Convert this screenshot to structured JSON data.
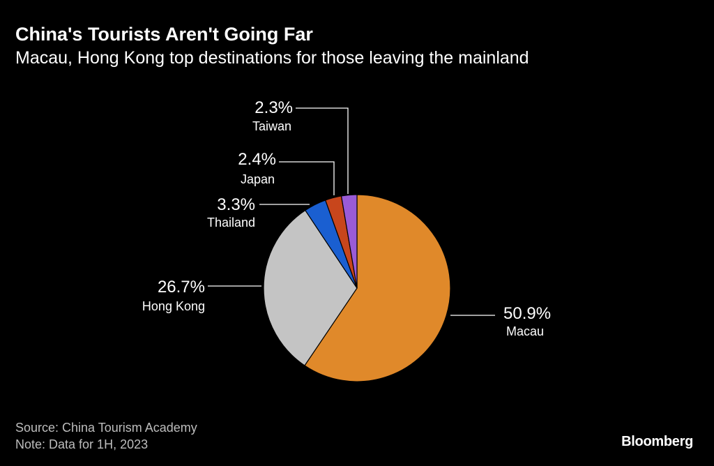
{
  "header": {
    "title": "China's Tourists Aren't Going Far",
    "subtitle": "Macau, Hong Kong top destinations for those leaving the mainland"
  },
  "chart_data": {
    "type": "pie",
    "start_angle_deg": 0,
    "direction": "clockwise",
    "slices": [
      {
        "label": "Macau",
        "value": 50.9,
        "value_label": "50.9%",
        "color": "#e0892a"
      },
      {
        "label": "Hong Kong",
        "value": 26.7,
        "value_label": "26.7%",
        "color": "#c4c4c4"
      },
      {
        "label": "Thailand",
        "value": 3.3,
        "value_label": "3.3%",
        "color": "#1a5fd1"
      },
      {
        "label": "Japan",
        "value": 2.4,
        "value_label": "2.4%",
        "color": "#c8461c"
      },
      {
        "label": "Taiwan",
        "value": 2.3,
        "value_label": "2.3%",
        "color": "#9a5bd6"
      }
    ]
  },
  "footer": {
    "source": "Source: China Tourism Academy",
    "note": "Note: Data for 1H, 2023"
  },
  "brand": {
    "logo_text": "Bloomberg"
  }
}
